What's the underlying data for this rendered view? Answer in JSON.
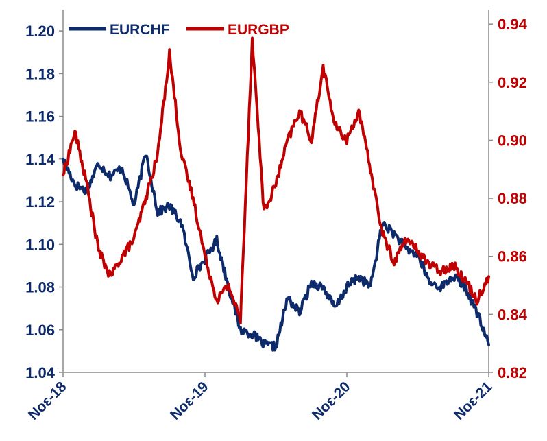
{
  "chart_data": {
    "type": "line",
    "title": "",
    "x_ticks": [
      "Νοε-18",
      "Νοε-19",
      "Νοε-20",
      "Νοε-21"
    ],
    "x_range": [
      "2018-11",
      "2021-11"
    ],
    "y_left": {
      "range": [
        1.04,
        1.21
      ],
      "ticks": [
        "1.04",
        "1.06",
        "1.08",
        "1.10",
        "1.12",
        "1.14",
        "1.16",
        "1.18",
        "1.20"
      ]
    },
    "y_right": {
      "range": [
        0.82,
        0.945
      ],
      "ticks": [
        "0.82",
        "0.84",
        "0.86",
        "0.88",
        "0.90",
        "0.92",
        "0.94"
      ]
    },
    "legend_position": "top-left",
    "grid": false,
    "series": [
      {
        "name": "EURCHF",
        "axis": "left",
        "color": "#0d2a6b",
        "points": [
          [
            "2018-11",
            1.14
          ],
          [
            "2018-12",
            1.128
          ],
          [
            "2019-01",
            1.125
          ],
          [
            "2019-02",
            1.138
          ],
          [
            "2019-03",
            1.132
          ],
          [
            "2019-04",
            1.136
          ],
          [
            "2019-05",
            1.118
          ],
          [
            "2019-06",
            1.143
          ],
          [
            "2019-07",
            1.115
          ],
          [
            "2019-08",
            1.118
          ],
          [
            "2019-09",
            1.11
          ],
          [
            "2019-10",
            1.085
          ],
          [
            "2019-11",
            1.093
          ],
          [
            "2019-12",
            1.102
          ],
          [
            "2020-01",
            1.08
          ],
          [
            "2020-02",
            1.06
          ],
          [
            "2020-03",
            1.058
          ],
          [
            "2020-04",
            1.053
          ],
          [
            "2020-05",
            1.052
          ],
          [
            "2020-06",
            1.075
          ],
          [
            "2020-07",
            1.068
          ],
          [
            "2020-08",
            1.082
          ],
          [
            "2020-09",
            1.08
          ],
          [
            "2020-10",
            1.07
          ],
          [
            "2020-11",
            1.08
          ],
          [
            "2020-12",
            1.085
          ],
          [
            "2021-01",
            1.08
          ],
          [
            "2021-02",
            1.11
          ],
          [
            "2021-03",
            1.105
          ],
          [
            "2021-04",
            1.098
          ],
          [
            "2021-05",
            1.095
          ],
          [
            "2021-06",
            1.082
          ],
          [
            "2021-07",
            1.08
          ],
          [
            "2021-08",
            1.085
          ],
          [
            "2021-09",
            1.08
          ],
          [
            "2021-10",
            1.068
          ],
          [
            "2021-11",
            1.053
          ]
        ]
      },
      {
        "name": "EURGBP",
        "axis": "right",
        "color": "#c00000",
        "points": [
          [
            "2018-11",
            0.888
          ],
          [
            "2018-12",
            0.903
          ],
          [
            "2019-01",
            0.885
          ],
          [
            "2019-02",
            0.862
          ],
          [
            "2019-03",
            0.853
          ],
          [
            "2019-04",
            0.86
          ],
          [
            "2019-05",
            0.866
          ],
          [
            "2019-06",
            0.88
          ],
          [
            "2019-07",
            0.895
          ],
          [
            "2019-08",
            0.93
          ],
          [
            "2019-09",
            0.895
          ],
          [
            "2019-10",
            0.88
          ],
          [
            "2019-11",
            0.86
          ],
          [
            "2019-12",
            0.845
          ],
          [
            "2020-01",
            0.85
          ],
          [
            "2020-02",
            0.838
          ],
          [
            "2020-03",
            0.935
          ],
          [
            "2020-04",
            0.875
          ],
          [
            "2020-05",
            0.885
          ],
          [
            "2020-06",
            0.9
          ],
          [
            "2020-07",
            0.91
          ],
          [
            "2020-08",
            0.9
          ],
          [
            "2020-09",
            0.925
          ],
          [
            "2020-10",
            0.905
          ],
          [
            "2020-11",
            0.9
          ],
          [
            "2020-12",
            0.91
          ],
          [
            "2021-01",
            0.89
          ],
          [
            "2021-02",
            0.868
          ],
          [
            "2021-03",
            0.858
          ],
          [
            "2021-04",
            0.866
          ],
          [
            "2021-05",
            0.862
          ],
          [
            "2021-06",
            0.857
          ],
          [
            "2021-07",
            0.855
          ],
          [
            "2021-08",
            0.857
          ],
          [
            "2021-09",
            0.852
          ],
          [
            "2021-10",
            0.845
          ],
          [
            "2021-11",
            0.853
          ]
        ]
      }
    ]
  }
}
